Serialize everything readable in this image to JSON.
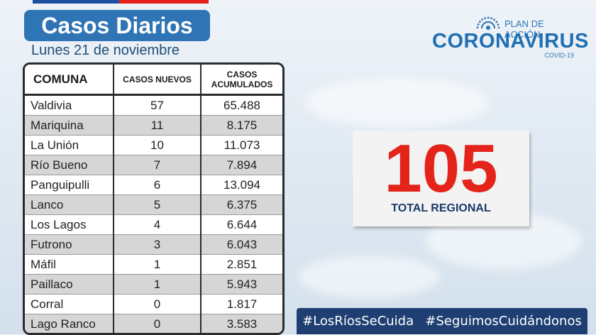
{
  "header": {
    "title": "Casos Diarios",
    "date": "Lunes 21 de noviembre"
  },
  "logo": {
    "top_text": "PLAN DE ACCIÓN",
    "main_text": "CORONAVIRUS",
    "sub_text": "COVID-19"
  },
  "table": {
    "headers": [
      "COMUNA",
      "CASOS NUEVOS",
      "CASOS ACUMULADOS"
    ],
    "rows": [
      {
        "comuna": "Valdivia",
        "nuevos": "57",
        "acumulados": "65.488"
      },
      {
        "comuna": "Mariquina",
        "nuevos": "11",
        "acumulados": "8.175"
      },
      {
        "comuna": "La Unión",
        "nuevos": "10",
        "acumulados": "11.073"
      },
      {
        "comuna": "Río Bueno",
        "nuevos": "7",
        "acumulados": "7.894"
      },
      {
        "comuna": "Panguipulli",
        "nuevos": "6",
        "acumulados": "13.094"
      },
      {
        "comuna": "Lanco",
        "nuevos": "5",
        "acumulados": "6.375"
      },
      {
        "comuna": "Los Lagos",
        "nuevos": "4",
        "acumulados": "6.644"
      },
      {
        "comuna": "Futrono",
        "nuevos": "3",
        "acumulados": "6.043"
      },
      {
        "comuna": "Máfil",
        "nuevos": "1",
        "acumulados": "2.851"
      },
      {
        "comuna": "Paillaco",
        "nuevos": "1",
        "acumulados": "5.943"
      },
      {
        "comuna": "Corral",
        "nuevos": "0",
        "acumulados": "1.817"
      },
      {
        "comuna": "Lago Ranco",
        "nuevos": "0",
        "acumulados": "3.583"
      }
    ]
  },
  "total": {
    "value": "105",
    "label": "TOTAL REGIONAL"
  },
  "hashtags": [
    "#LosRíosSeCuida",
    "#SeguimosCuidándonos"
  ],
  "colors": {
    "title_bg": "#2f74b5",
    "total_red": "#e4231b",
    "hashtag_bg": "#1f3f73",
    "flag_blue": "#1f4fa0",
    "flag_red": "#e4231b"
  }
}
